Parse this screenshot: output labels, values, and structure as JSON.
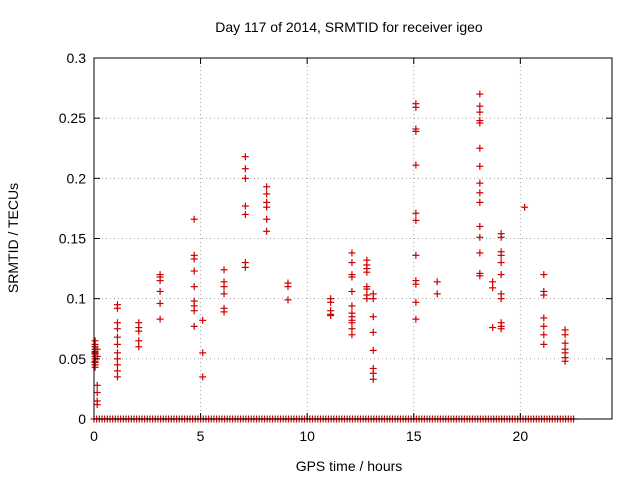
{
  "chart_data": {
    "type": "scatter",
    "title": "Day 117 of 2014, SRMTID for receiver igeo",
    "xlabel": "GPS time / hours",
    "ylabel": "SRMTID / TECUs",
    "xlim": [
      0,
      24.3
    ],
    "ylim": [
      0,
      0.3
    ],
    "xticks": [
      0,
      5,
      10,
      15,
      20
    ],
    "xtick_labels": [
      "0",
      "5",
      "10",
      "15",
      "20"
    ],
    "yticks": [
      0,
      0.05,
      0.1,
      0.15,
      0.2,
      0.25,
      0.3
    ],
    "ytick_labels": [
      "0",
      "0.05",
      "0.1",
      "0.15",
      "0.2",
      "0.25",
      "0.3"
    ],
    "grid": true,
    "marker": "+",
    "series": [
      {
        "name": "SRMTID",
        "color": "#cc0000",
        "columns": [
          {
            "x": 0.05,
            "y": [
              0.065,
              0.062,
              0.06,
              0.058,
              0.056,
              0.055,
              0.054,
              0.052,
              0.05,
              0.048,
              0.047,
              0.045,
              0.043
            ]
          },
          {
            "x": 0.15,
            "y": [
              0.058,
              0.052,
              0.028,
              0.022,
              0.015,
              0.012
            ]
          },
          {
            "x": 1.1,
            "y": [
              0.095,
              0.092,
              0.08,
              0.075,
              0.068,
              0.062,
              0.055,
              0.05,
              0.045,
              0.04,
              0.035
            ]
          },
          {
            "x": 2.1,
            "y": [
              0.08,
              0.076,
              0.073,
              0.065,
              0.06
            ]
          },
          {
            "x": 3.1,
            "y": [
              0.12,
              0.118,
              0.115,
              0.106,
              0.096,
              0.083
            ]
          },
          {
            "x": 4.7,
            "y": [
              0.166,
              0.136,
              0.133,
              0.123,
              0.11,
              0.098,
              0.094,
              0.09,
              0.077
            ]
          },
          {
            "x": 5.1,
            "y": [
              0.082,
              0.055,
              0.035
            ]
          },
          {
            "x": 6.1,
            "y": [
              0.124,
              0.114,
              0.11,
              0.104,
              0.092,
              0.089
            ]
          },
          {
            "x": 7.1,
            "y": [
              0.218,
              0.208,
              0.2,
              0.177,
              0.17,
              0.13,
              0.126
            ]
          },
          {
            "x": 8.1,
            "y": [
              0.193,
              0.187,
              0.18,
              0.176,
              0.166,
              0.156
            ]
          },
          {
            "x": 9.1,
            "y": [
              0.113,
              0.11,
              0.099
            ]
          },
          {
            "x": 11.1,
            "y": [
              0.1,
              0.097,
              0.09,
              0.087,
              0.086
            ]
          },
          {
            "x": 12.1,
            "y": [
              0.138,
              0.13,
              0.12,
              0.118,
              0.106,
              0.094,
              0.088,
              0.085,
              0.082,
              0.08,
              0.075,
              0.07
            ]
          },
          {
            "x": 12.8,
            "y": [
              0.132,
              0.128,
              0.125,
              0.122,
              0.11,
              0.108,
              0.103,
              0.1
            ]
          },
          {
            "x": 13.1,
            "y": [
              0.104,
              0.1,
              0.085,
              0.072,
              0.057,
              0.042,
              0.038,
              0.033
            ]
          },
          {
            "x": 15.1,
            "y": [
              0.262,
              0.259,
              0.241,
              0.239,
              0.211,
              0.171,
              0.165,
              0.136,
              0.115,
              0.112,
              0.097,
              0.083
            ]
          },
          {
            "x": 16.1,
            "y": [
              0.114,
              0.104
            ]
          },
          {
            "x": 18.1,
            "y": [
              0.27,
              0.26,
              0.255,
              0.248,
              0.246,
              0.225,
              0.21,
              0.196,
              0.188,
              0.18,
              0.16,
              0.151,
              0.138,
              0.121,
              0.119
            ]
          },
          {
            "x": 18.7,
            "y": [
              0.114,
              0.109,
              0.076
            ]
          },
          {
            "x": 19.1,
            "y": [
              0.154,
              0.151,
              0.139,
              0.136,
              0.13,
              0.12,
              0.104,
              0.1,
              0.08,
              0.077,
              0.075
            ]
          },
          {
            "x": 20.2,
            "y": [
              0.176
            ]
          },
          {
            "x": 21.1,
            "y": [
              0.12,
              0.106,
              0.103,
              0.084,
              0.077,
              0.07,
              0.062
            ]
          },
          {
            "x": 22.1,
            "y": [
              0.074,
              0.07,
              0.063,
              0.058,
              0.055,
              0.051,
              0.048
            ]
          }
        ],
        "zero_baseline": {
          "y": 0,
          "x_start": 0,
          "x_end": 22.6,
          "step": 0.125
        }
      }
    ]
  }
}
